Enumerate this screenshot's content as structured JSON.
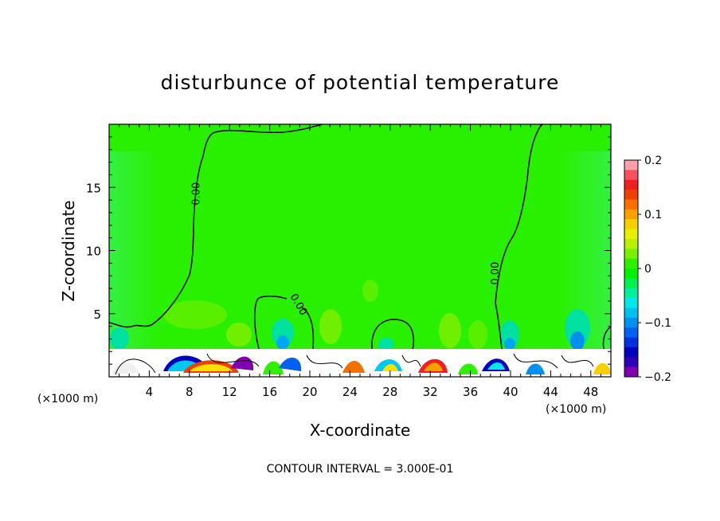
{
  "title": "disturbunce of potential temperature",
  "footer": "CONTOUR INTERVAL = 3.000E-01",
  "chart_data": {
    "type": "heatmap",
    "title": "disturbunce of potential temperature",
    "xlabel": "X-coordinate",
    "ylabel": "Z-coordinate",
    "x_unit_left": "(×1000 m)",
    "x_unit_right": "(×1000 m)",
    "xlim": [
      0,
      50
    ],
    "ylim": [
      0,
      20
    ],
    "x_ticks": [
      4,
      8,
      12,
      16,
      20,
      24,
      28,
      32,
      36,
      40,
      44,
      48
    ],
    "x_tick_labels": [
      "4",
      "8",
      "12",
      "16",
      "20",
      "24",
      "28",
      "32",
      "36",
      "40",
      "44",
      "48"
    ],
    "y_ticks": [
      5,
      10,
      15
    ],
    "y_tick_labels": [
      "5",
      "10",
      "15"
    ],
    "colorbar": {
      "min": -0.2,
      "max": 0.2,
      "tick_values": [
        0.2,
        0.1,
        0,
        -0.1,
        -0.2
      ],
      "tick_labels": [
        "0.2",
        "0.1",
        "0",
        "−0.1",
        "−0.2"
      ],
      "colors": [
        "#f8a0a8",
        "#f85060",
        "#f02020",
        "#f04000",
        "#f87000",
        "#f8a000",
        "#f8d000",
        "#e8f000",
        "#b8f000",
        "#78f000",
        "#30f000",
        "#00f000",
        "#00f050",
        "#00f0a0",
        "#00e8e8",
        "#00c0f0",
        "#0090f0",
        "#0060f0",
        "#0030e0",
        "#0000c0",
        "#3000b8",
        "#8000b0"
      ]
    },
    "contour_labels": [
      {
        "text": "0.00",
        "x": 9.0,
        "y": 14.5
      },
      {
        "text": "0.00",
        "x": 18.6,
        "y": 5.6
      },
      {
        "text": "0.00",
        "x": 38.8,
        "y": 8.2
      }
    ],
    "contour_interval": 0.3
  },
  "colors": {
    "background_field": "#28f000",
    "accent_green": "#70f000",
    "accent_cyan": "#00e0a0",
    "accent_blue": "#0090f0"
  }
}
